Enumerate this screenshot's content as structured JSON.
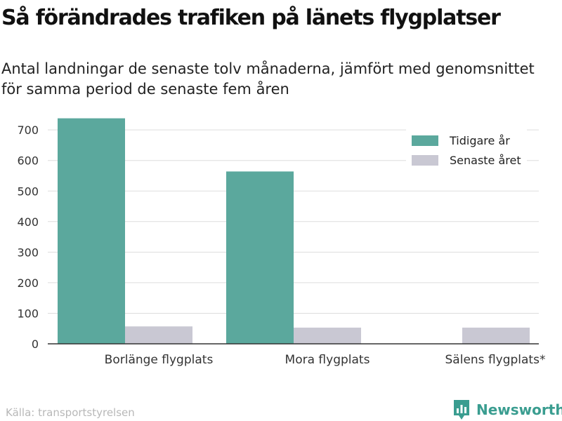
{
  "title": "Så förändrades trafiken på länets flygplatser",
  "subtitle": "Antal landningar de senaste tolv månaderna, jämfört med genomsnittet för samma period de senaste fem åren",
  "source": "Källa: transportstyrelsen",
  "brand": {
    "name": "Newsworthy",
    "icon": "bar-chart-pin-icon",
    "color": "#3a9d90"
  },
  "colors": {
    "tidigare": "#5ba89d",
    "senaste": "#c9c8d3",
    "grid": "#dddddd",
    "axis": "#333333"
  },
  "chart_data": {
    "type": "bar",
    "categories": [
      "Borlänge flygplats",
      "Mora flygplats",
      "Sälens flygplats*"
    ],
    "series": [
      {
        "name": "Tidigare år",
        "values": [
          738,
          564,
          null
        ]
      },
      {
        "name": "Senaste året",
        "values": [
          57,
          53,
          53
        ]
      }
    ],
    "y_ticks": [
      0,
      100,
      200,
      300,
      400,
      500,
      600,
      700
    ],
    "ylim": [
      0,
      740
    ],
    "grid": true,
    "legend_position": "top-right"
  }
}
